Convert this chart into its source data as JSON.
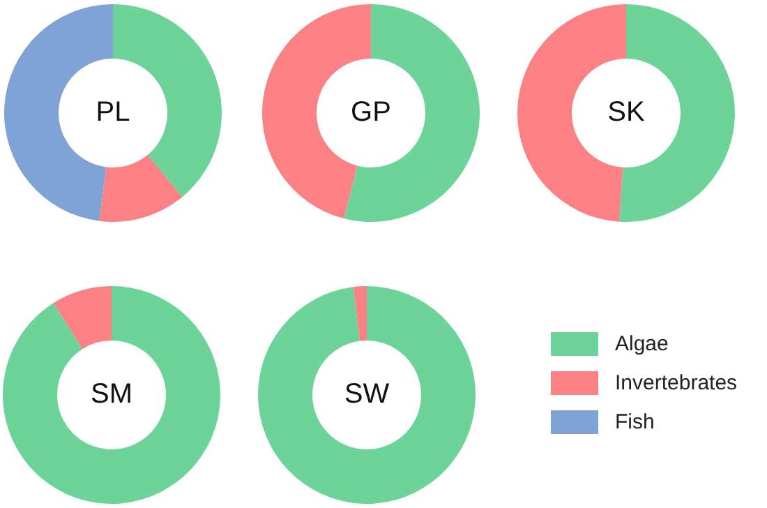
{
  "chart_data": [
    {
      "type": "donut",
      "title": "PL",
      "categories": [
        "Algae",
        "Invertebrates",
        "Fish"
      ],
      "values": [
        39,
        13,
        48
      ],
      "colors": [
        "#6cd498",
        "#fb8185",
        "#7fa3d4"
      ],
      "legend": "bottom right"
    },
    {
      "type": "donut",
      "title": "GP",
      "categories": [
        null,
        null
      ],
      "values": [
        54,
        46
      ],
      "colors": [
        "#6cd498",
        "#fb8185"
      ]
    },
    {
      "type": "donut",
      "title": "SK",
      "categories": [
        null,
        null
      ],
      "values": [
        51,
        49
      ],
      "colors": [
        "#6cd498",
        "#fb8185"
      ]
    },
    {
      "type": "donut",
      "title": "SM",
      "categories": [
        null,
        null
      ],
      "values": [
        91,
        9
      ],
      "colors": [
        "#6cd498",
        "#fb8185"
      ]
    },
    {
      "type": "donut",
      "title": "SW",
      "categories": [
        null,
        null
      ],
      "values": [
        98,
        2
      ],
      "colors": [
        "#6cd498",
        "#fb8185"
      ]
    }
  ]
}
